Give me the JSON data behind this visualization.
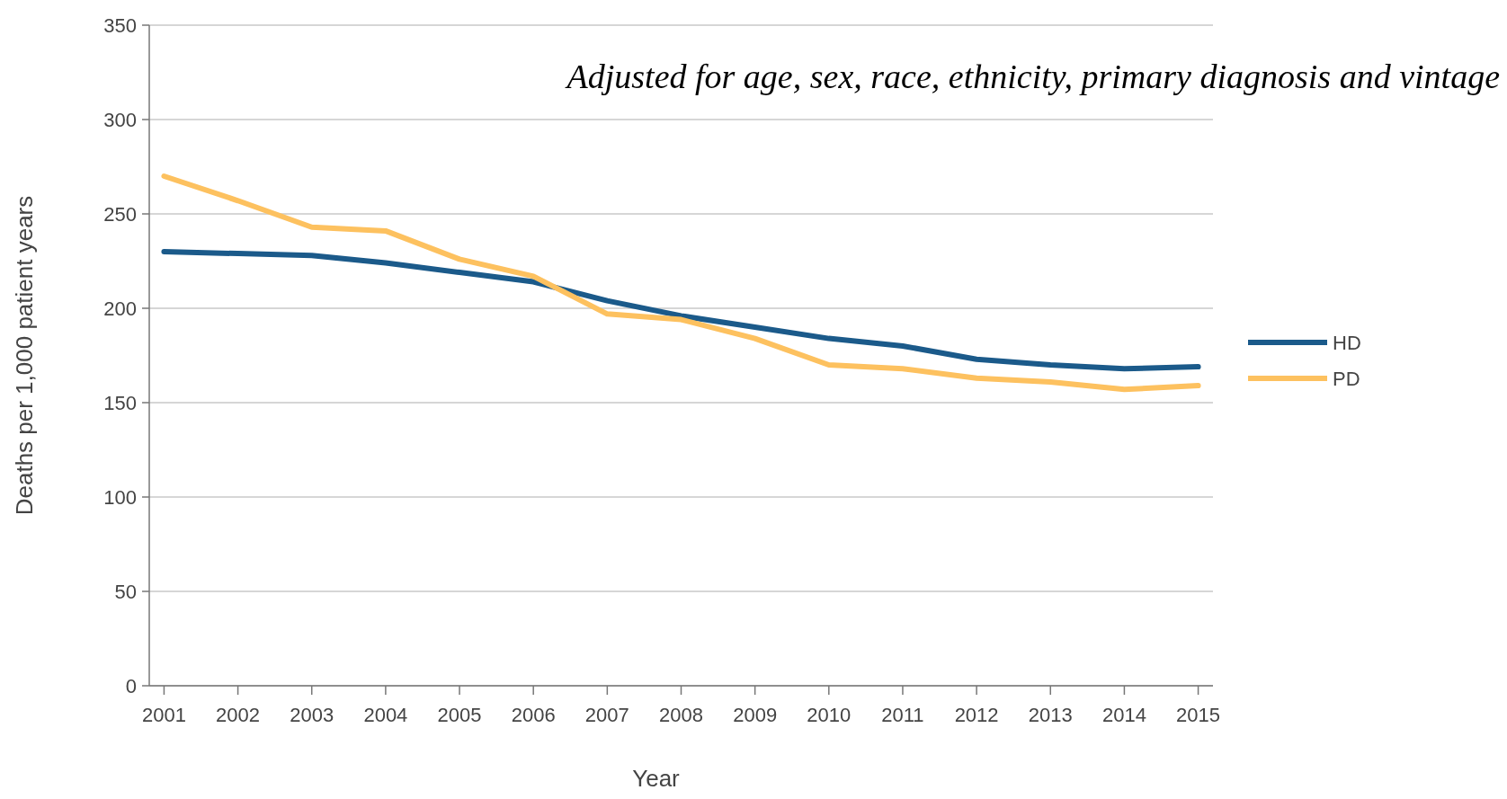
{
  "chart_data": {
    "type": "line",
    "xlabel": "Year",
    "ylabel": "Deaths per 1,000 patient years",
    "annotations": [
      "Adjusted for age, sex, race, ethnicity, primary diagnosis and vintage"
    ],
    "categories": [
      "2001",
      "2002",
      "2003",
      "2004",
      "2005",
      "2006",
      "2007",
      "2008",
      "2009",
      "2010",
      "2011",
      "2012",
      "2013",
      "2014",
      "2015"
    ],
    "series": [
      {
        "name": "HD",
        "color": "#1b5a8a",
        "values": [
          230,
          229,
          228,
          224,
          219,
          214,
          204,
          196,
          190,
          184,
          180,
          173,
          170,
          168,
          169
        ]
      },
      {
        "name": "PD",
        "color": "#fdc15f",
        "values": [
          270,
          257,
          243,
          241,
          226,
          217,
          197,
          194,
          184,
          170,
          168,
          163,
          161,
          157,
          159
        ]
      }
    ],
    "ylim": [
      0,
      350
    ],
    "yticks": [
      0,
      50,
      100,
      150,
      200,
      250,
      300,
      350
    ],
    "grid": "y",
    "legend": "right",
    "marker": "none",
    "line_style": "solid"
  }
}
